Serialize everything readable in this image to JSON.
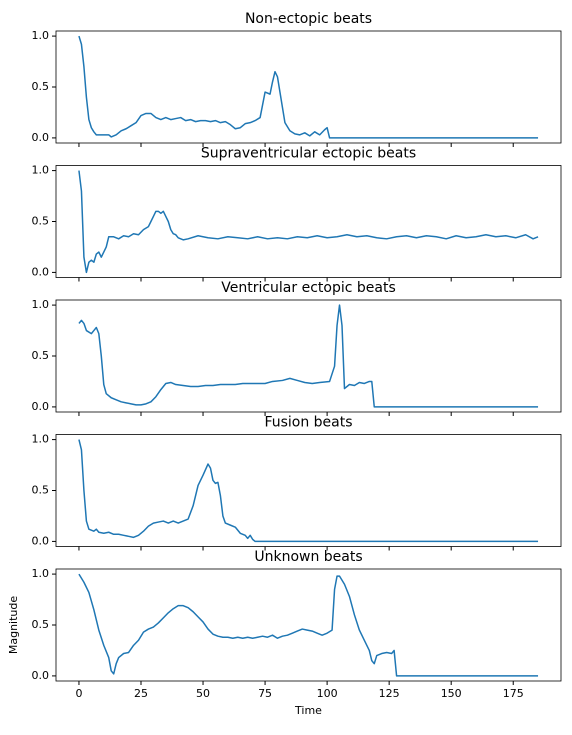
{
  "chart_data": [
    {
      "type": "line",
      "title": "Non-ectopic beats",
      "color": "#1f77b4",
      "x": [
        0,
        1,
        2,
        3,
        4,
        5,
        6,
        7,
        9,
        12,
        13,
        15,
        17,
        19,
        21,
        23,
        25,
        27,
        29,
        31,
        33,
        35,
        37,
        39,
        41,
        43,
        45,
        47,
        49,
        51,
        53,
        55,
        57,
        59,
        61,
        63,
        65,
        67,
        69,
        71,
        73,
        75,
        77,
        78,
        79,
        80,
        81,
        82,
        83,
        85,
        87,
        89,
        91,
        93,
        95,
        97,
        99,
        100,
        101,
        185
      ],
      "values": [
        1.0,
        0.92,
        0.7,
        0.4,
        0.18,
        0.1,
        0.06,
        0.03,
        0.03,
        0.03,
        0.01,
        0.03,
        0.07,
        0.09,
        0.12,
        0.15,
        0.22,
        0.24,
        0.24,
        0.2,
        0.18,
        0.2,
        0.18,
        0.19,
        0.2,
        0.17,
        0.18,
        0.16,
        0.17,
        0.17,
        0.16,
        0.17,
        0.15,
        0.16,
        0.13,
        0.09,
        0.1,
        0.14,
        0.15,
        0.17,
        0.2,
        0.45,
        0.43,
        0.55,
        0.65,
        0.6,
        0.45,
        0.3,
        0.15,
        0.07,
        0.04,
        0.03,
        0.05,
        0.02,
        0.06,
        0.03,
        0.08,
        0.1,
        0,
        0
      ],
      "xlim": [
        -9.25,
        194.25
      ],
      "xticks": [
        0,
        25,
        50,
        75,
        100,
        125,
        150,
        175
      ],
      "ylim": [
        -0.05,
        1.05
      ],
      "yticks": [
        {
          "value": 0,
          "label": "0.0"
        },
        0.5,
        {
          "value": 1,
          "label": "1.0"
        }
      ]
    },
    {
      "type": "line",
      "title": "Supraventricular ectopic beats",
      "color": "#1f77b4",
      "x": [
        0,
        1,
        2,
        3,
        4,
        5,
        6,
        7,
        8,
        9,
        10,
        11,
        12,
        14,
        16,
        18,
        20,
        22,
        24,
        26,
        28,
        29,
        30,
        31,
        32,
        33,
        34,
        35,
        36,
        37,
        38,
        39,
        40,
        42,
        44,
        48,
        52,
        56,
        60,
        64,
        68,
        72,
        76,
        80,
        84,
        88,
        92,
        96,
        100,
        104,
        108,
        112,
        116,
        120,
        124,
        128,
        132,
        136,
        140,
        144,
        148,
        152,
        156,
        160,
        164,
        168,
        172,
        176,
        180,
        183,
        185
      ],
      "values": [
        1.0,
        0.8,
        0.15,
        0.0,
        0.1,
        0.12,
        0.1,
        0.18,
        0.2,
        0.15,
        0.2,
        0.25,
        0.35,
        0.35,
        0.33,
        0.36,
        0.35,
        0.38,
        0.37,
        0.42,
        0.45,
        0.5,
        0.55,
        0.6,
        0.6,
        0.58,
        0.6,
        0.55,
        0.5,
        0.42,
        0.38,
        0.37,
        0.34,
        0.32,
        0.33,
        0.36,
        0.34,
        0.33,
        0.35,
        0.34,
        0.33,
        0.35,
        0.33,
        0.34,
        0.33,
        0.35,
        0.34,
        0.36,
        0.34,
        0.35,
        0.37,
        0.35,
        0.36,
        0.34,
        0.33,
        0.35,
        0.36,
        0.34,
        0.36,
        0.35,
        0.33,
        0.36,
        0.34,
        0.35,
        0.37,
        0.35,
        0.36,
        0.34,
        0.37,
        0.33,
        0.35
      ],
      "xlim": [
        -9.25,
        194.25
      ],
      "xticks": [
        0,
        25,
        50,
        75,
        100,
        125,
        150,
        175
      ],
      "ylim": [
        -0.05,
        1.05
      ],
      "yticks": [
        {
          "value": 0,
          "label": "0.0"
        },
        0.5,
        {
          "value": 1,
          "label": "1.0"
        }
      ]
    },
    {
      "type": "line",
      "title": "Ventricular ectopic beats",
      "color": "#1f77b4",
      "x": [
        0,
        1,
        2,
        3,
        5,
        6,
        7,
        8,
        9,
        10,
        11,
        13,
        15,
        17,
        19,
        21,
        23,
        25,
        27,
        29,
        31,
        33,
        35,
        37,
        39,
        42,
        45,
        48,
        51,
        54,
        57,
        60,
        63,
        66,
        69,
        72,
        75,
        78,
        82,
        85,
        88,
        91,
        94,
        97,
        101,
        103,
        104,
        105,
        106,
        107,
        109,
        111,
        113,
        115,
        117,
        118,
        119,
        185
      ],
      "values": [
        0.82,
        0.85,
        0.82,
        0.75,
        0.72,
        0.75,
        0.78,
        0.72,
        0.5,
        0.22,
        0.13,
        0.09,
        0.07,
        0.05,
        0.04,
        0.03,
        0.02,
        0.02,
        0.03,
        0.05,
        0.1,
        0.17,
        0.23,
        0.24,
        0.22,
        0.21,
        0.2,
        0.2,
        0.21,
        0.21,
        0.22,
        0.22,
        0.22,
        0.23,
        0.23,
        0.23,
        0.23,
        0.25,
        0.26,
        0.28,
        0.26,
        0.24,
        0.23,
        0.24,
        0.25,
        0.4,
        0.8,
        1.0,
        0.8,
        0.18,
        0.22,
        0.21,
        0.24,
        0.23,
        0.25,
        0.25,
        0,
        0
      ],
      "xlim": [
        -9.25,
        194.25
      ],
      "xticks": [
        0,
        25,
        50,
        75,
        100,
        125,
        150,
        175
      ],
      "ylim": [
        -0.05,
        1.05
      ],
      "yticks": [
        {
          "value": 0,
          "label": "0.0"
        },
        0.5,
        {
          "value": 1,
          "label": "1.0"
        }
      ]
    },
    {
      "type": "line",
      "title": "Fusion beats",
      "color": "#1f77b4",
      "x": [
        0,
        1,
        2,
        3,
        4,
        6,
        7,
        8,
        10,
        12,
        14,
        16,
        18,
        20,
        22,
        24,
        26,
        28,
        30,
        32,
        34,
        36,
        38,
        40,
        42,
        44,
        46,
        48,
        50,
        52,
        53,
        54,
        55,
        56,
        57,
        58,
        59,
        61,
        63,
        65,
        67,
        68,
        69,
        70,
        71,
        185
      ],
      "values": [
        1.0,
        0.9,
        0.5,
        0.2,
        0.12,
        0.1,
        0.12,
        0.09,
        0.08,
        0.09,
        0.07,
        0.07,
        0.06,
        0.05,
        0.04,
        0.06,
        0.1,
        0.15,
        0.18,
        0.19,
        0.2,
        0.18,
        0.2,
        0.18,
        0.2,
        0.22,
        0.35,
        0.55,
        0.65,
        0.76,
        0.72,
        0.6,
        0.57,
        0.58,
        0.45,
        0.25,
        0.18,
        0.16,
        0.14,
        0.08,
        0.06,
        0.03,
        0.06,
        0.02,
        0,
        0
      ],
      "xlim": [
        -9.25,
        194.25
      ],
      "xticks": [
        0,
        25,
        50,
        75,
        100,
        125,
        150,
        175
      ],
      "ylim": [
        -0.05,
        1.05
      ],
      "yticks": [
        {
          "value": 0,
          "label": "0.0"
        },
        0.5,
        {
          "value": 1,
          "label": "1.0"
        }
      ]
    },
    {
      "type": "line",
      "title": "Unknown beats",
      "color": "#1f77b4",
      "xlabel": "Time",
      "ylabel": "Magnitude",
      "x": [
        0,
        2,
        4,
        6,
        8,
        10,
        12,
        13,
        14,
        15,
        16,
        18,
        20,
        22,
        24,
        26,
        28,
        30,
        32,
        34,
        36,
        38,
        40,
        42,
        44,
        46,
        48,
        50,
        52,
        54,
        56,
        58,
        60,
        62,
        64,
        66,
        68,
        70,
        72,
        74,
        76,
        78,
        80,
        82,
        84,
        86,
        88,
        90,
        92,
        94,
        96,
        98,
        100,
        102,
        103,
        104,
        105,
        107,
        109,
        111,
        113,
        115,
        117,
        118,
        119,
        120,
        122,
        124,
        126,
        127,
        128,
        185
      ],
      "values": [
        1.0,
        0.92,
        0.82,
        0.65,
        0.45,
        0.3,
        0.18,
        0.05,
        0.02,
        0.12,
        0.18,
        0.22,
        0.23,
        0.3,
        0.35,
        0.43,
        0.46,
        0.48,
        0.52,
        0.57,
        0.62,
        0.66,
        0.69,
        0.69,
        0.67,
        0.63,
        0.58,
        0.53,
        0.46,
        0.41,
        0.39,
        0.38,
        0.38,
        0.37,
        0.38,
        0.37,
        0.38,
        0.37,
        0.38,
        0.39,
        0.38,
        0.4,
        0.37,
        0.39,
        0.4,
        0.42,
        0.44,
        0.46,
        0.45,
        0.44,
        0.42,
        0.4,
        0.42,
        0.45,
        0.85,
        0.98,
        0.98,
        0.9,
        0.78,
        0.6,
        0.45,
        0.35,
        0.25,
        0.15,
        0.12,
        0.2,
        0.22,
        0.23,
        0.22,
        0.25,
        0,
        0
      ],
      "xlim": [
        -9.25,
        194.25
      ],
      "xticks": [
        0,
        25,
        50,
        75,
        100,
        125,
        150,
        175
      ],
      "ylim": [
        -0.05,
        1.05
      ],
      "yticks": [
        {
          "value": 0,
          "label": "0.0"
        },
        0.5,
        {
          "value": 1,
          "label": "1.0"
        }
      ]
    }
  ]
}
